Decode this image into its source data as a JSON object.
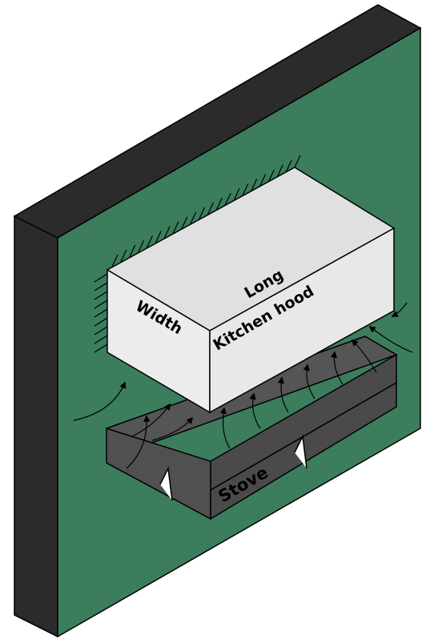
{
  "labels": {
    "long": "Long",
    "width": "Width",
    "kitchen_hood": "Kitchen hood",
    "stove": "Stove"
  },
  "colors": {
    "wall_face": "#3b7d5c",
    "wall_top": "#2b2b2b",
    "wall_side": "#2b2b2b",
    "hood_front": "#e8e8e8",
    "hood_top": "#e0e0e0",
    "hood_side": "#ececec",
    "stove_top": "#555555",
    "stove_front": "#4a4a4a",
    "stove_side": "#505050",
    "outline": "#000000"
  },
  "icons": {
    "flow_arrow": "arrow-icon",
    "wall_hatch": "hatch-marks"
  }
}
